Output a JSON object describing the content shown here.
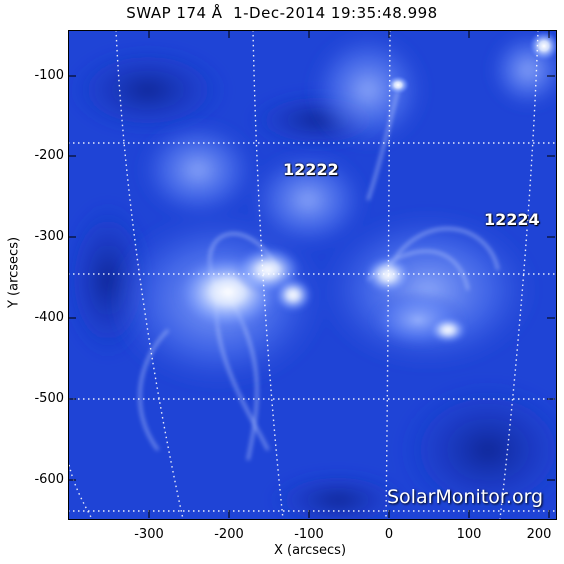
{
  "title": "SWAP 174 Å  1-Dec-2014 19:35:48.998",
  "x_axis": {
    "label": "X (arcsecs)",
    "ticks": [
      "-300",
      "-200",
      "-100",
      "0",
      "100",
      "200"
    ]
  },
  "y_axis": {
    "label": "Y (arcsecs)",
    "ticks": [
      "-100",
      "-200",
      "-300",
      "-400",
      "-500",
      "-600"
    ]
  },
  "active_regions": [
    {
      "id": "ar-12222",
      "label": "12222"
    },
    {
      "id": "ar-12224",
      "label": "12224"
    }
  ],
  "watermark": "SolarMonitor.org",
  "colors": {
    "background": "#1c3fd0",
    "bright": "#ffffff",
    "mid": "#5f86ff",
    "dark": "#1630a8",
    "grid": "#ffffff"
  }
}
